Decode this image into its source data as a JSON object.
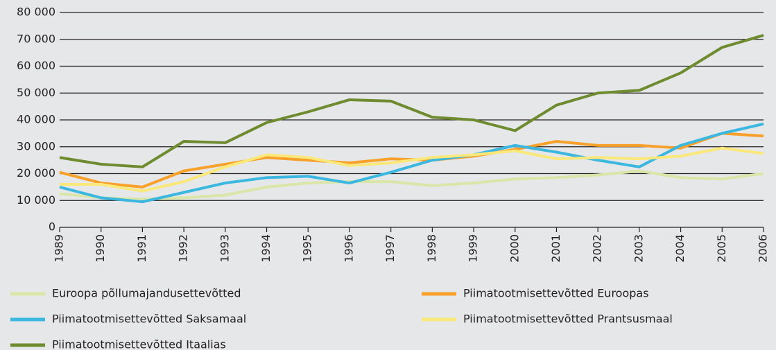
{
  "chart_data": {
    "type": "line",
    "categories": [
      "1989",
      "1990",
      "1991",
      "1992",
      "1993",
      "1994",
      "1995",
      "1996",
      "1997",
      "1998",
      "1999",
      "2000",
      "2001",
      "2002",
      "2003",
      "2004",
      "2005",
      "2006"
    ],
    "series": [
      {
        "name": "Euroopa põllumajandusettevõtted",
        "color": "#d9e6a8",
        "values": [
          12500,
          11000,
          10500,
          11000,
          12000,
          15000,
          16500,
          17000,
          17000,
          15500,
          16500,
          18000,
          18500,
          19500,
          21000,
          18500,
          18000,
          20000
        ]
      },
      {
        "name": "Piimatootmisettevõtted Euroopas",
        "color": "#f7a12a",
        "values": [
          20500,
          16500,
          15000,
          21000,
          23500,
          26000,
          25000,
          24000,
          25500,
          25000,
          26500,
          29000,
          32000,
          30500,
          30500,
          29500,
          35000,
          34000
        ]
      },
      {
        "name": "Piimatootmisettevõtted Saksamaal",
        "color": "#3bb7e0",
        "values": [
          15000,
          11000,
          9500,
          13000,
          16500,
          18500,
          19000,
          16500,
          20500,
          25000,
          27000,
          30500,
          28000,
          25000,
          22500,
          30500,
          35000,
          38500
        ]
      },
      {
        "name": "Piimatootmisettevõtted Prantsusmaal",
        "color": "#fbe87a",
        "values": [
          16000,
          16000,
          13500,
          17000,
          22500,
          27000,
          26000,
          23000,
          24000,
          26000,
          27000,
          28500,
          25500,
          26000,
          25500,
          26500,
          29500,
          27500
        ]
      },
      {
        "name": "Piimatootmisettevõtted Itaalias",
        "color": "#6e8b2f",
        "values": [
          26000,
          23500,
          22500,
          32000,
          31500,
          39000,
          43000,
          47500,
          47000,
          41000,
          40000,
          36000,
          45500,
          50000,
          51000,
          57500,
          67000,
          71500
        ]
      }
    ],
    "ylim": [
      0,
      80000
    ],
    "yticks": [
      0,
      {
        "value": 10000,
        "label": "10 000"
      },
      {
        "value": 20000,
        "label": "20 000"
      },
      {
        "value": 30000,
        "label": "30 000"
      },
      {
        "value": 40000,
        "label": "40 000"
      },
      {
        "value": 50000,
        "label": "50 000"
      },
      {
        "value": 60000,
        "label": "60 000"
      },
      {
        "value": 70000,
        "label": "70 000"
      },
      {
        "value": 80000,
        "label": "80 000"
      }
    ],
    "grid": true
  }
}
